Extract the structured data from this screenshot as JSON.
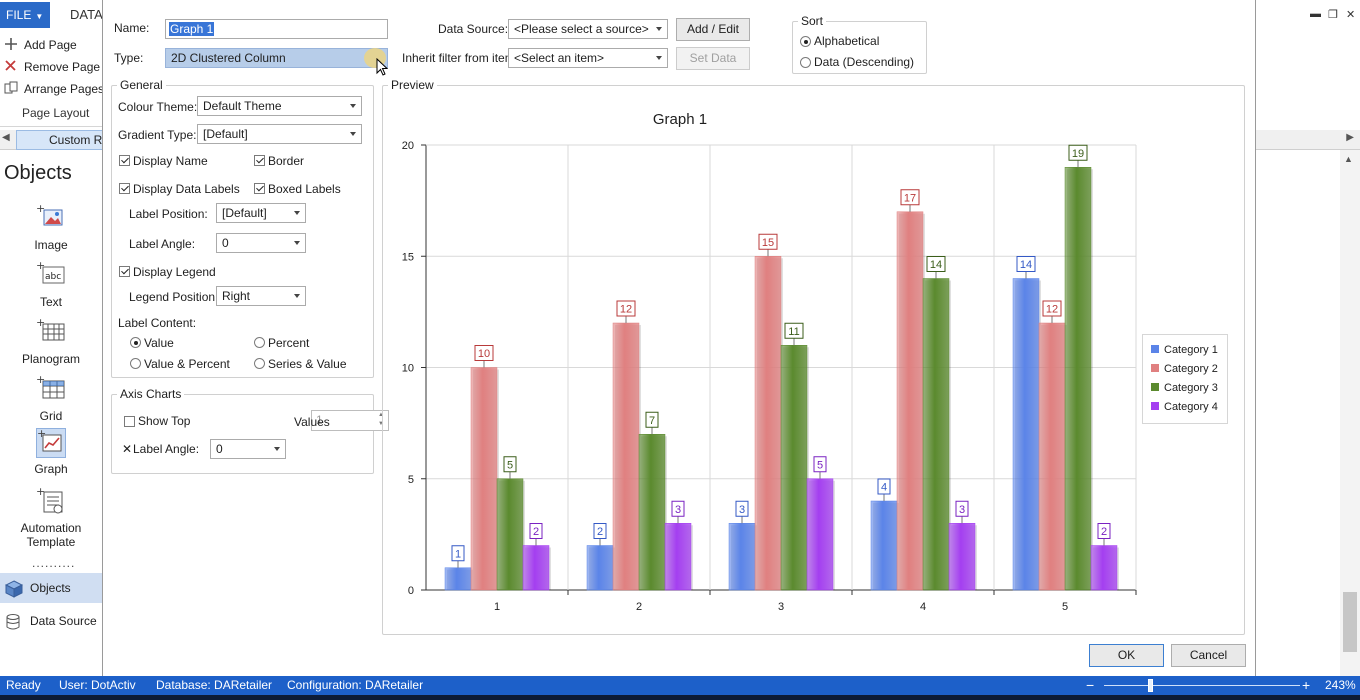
{
  "app": {
    "file_tab": "FILE",
    "data_tab": "DATA",
    "ribbon": {
      "add_page": "Add Page",
      "remove_page": "Remove Page",
      "arrange_pages": "Arrange Pages",
      "group_label": "Page Layout"
    },
    "doc_tab": "Custom R",
    "objects_title": "Objects",
    "objects": [
      {
        "label": "Image",
        "icon": "image-icon"
      },
      {
        "label": "Text",
        "icon": "text-icon"
      },
      {
        "label": "Planogram",
        "icon": "planogram-icon"
      },
      {
        "label": "Grid",
        "icon": "grid-icon"
      },
      {
        "label": "Graph",
        "icon": "graph-icon"
      },
      {
        "label": "Automation Template",
        "icon": "automation-template-icon"
      }
    ],
    "more_dots": "..........",
    "nav": {
      "objects": "Objects",
      "data_source": "Data Source"
    },
    "window_controls": {
      "minimize": "▬",
      "restore": "❐",
      "close": "✕"
    }
  },
  "statusbar": {
    "ready": "Ready",
    "user": "User: DotActiv",
    "database": "Database: DARetailer",
    "configuration": "Configuration: DARetailer",
    "zoom_minus": "−",
    "zoom_plus": "+",
    "zoom": "243%"
  },
  "dialog": {
    "name_label": "Name:",
    "name_value": "Graph 1",
    "type_label": "Type:",
    "type_value": "2D Clustered Column",
    "data_source_label": "Data Source:",
    "data_source_value": "<Please select a source>",
    "add_edit_button": "Add / Edit",
    "inherit_label": "Inherit filter from item:",
    "inherit_value": "<Select an item>",
    "set_data_button": "Set Data",
    "sort": {
      "title": "Sort",
      "alphabetical": "Alphabetical",
      "data_desc": "Data (Descending)"
    },
    "general": {
      "title": "General",
      "colour_theme_label": "Colour Theme:",
      "colour_theme_value": "Default Theme",
      "gradient_type_label": "Gradient Type:",
      "gradient_type_value": "[Default]",
      "display_name": "Display Name",
      "border": "Border",
      "display_data_labels": "Display Data Labels",
      "boxed_labels": "Boxed Labels",
      "label_position_label": "Label Position:",
      "label_position_value": "[Default]",
      "label_angle_label": "Label Angle:",
      "label_angle_value": "0",
      "display_legend": "Display Legend",
      "legend_position_label": "Legend Position:",
      "legend_position_value": "Right",
      "label_content_label": "Label Content:",
      "value": "Value",
      "percent": "Percent",
      "value_percent": "Value & Percent",
      "series_value": "Series & Value"
    },
    "axis": {
      "title": "Axis Charts",
      "show_top": "Show Top",
      "show_top_value": "1",
      "values_label": "Values",
      "x_label_angle_label": "Label Angle:",
      "x_label_angle_value": "0"
    },
    "preview_title": "Preview",
    "ok_button": "OK",
    "cancel_button": "Cancel"
  },
  "chart_data": {
    "type": "bar",
    "title": "Graph 1",
    "categories": [
      "1",
      "2",
      "3",
      "4",
      "5"
    ],
    "ylim": [
      0,
      20
    ],
    "yticks": [
      0,
      5,
      10,
      15,
      20
    ],
    "grid": true,
    "legend_position": "right",
    "series": [
      {
        "name": "Category 1",
        "values": [
          1,
          2,
          3,
          4,
          14
        ],
        "color": "#5b84e8",
        "label_color": "#3459c6"
      },
      {
        "name": "Category 2",
        "values": [
          10,
          12,
          15,
          17,
          12
        ],
        "color": "#e08080",
        "label_color": "#b83a3a"
      },
      {
        "name": "Category 3",
        "values": [
          5,
          7,
          11,
          14,
          19
        ],
        "color": "#5b8a2e",
        "label_color": "#3b5e1a"
      },
      {
        "name": "Category 4",
        "values": [
          2,
          3,
          5,
          3,
          2
        ],
        "color": "#a43ff0",
        "label_color": "#7a22c2"
      }
    ]
  }
}
